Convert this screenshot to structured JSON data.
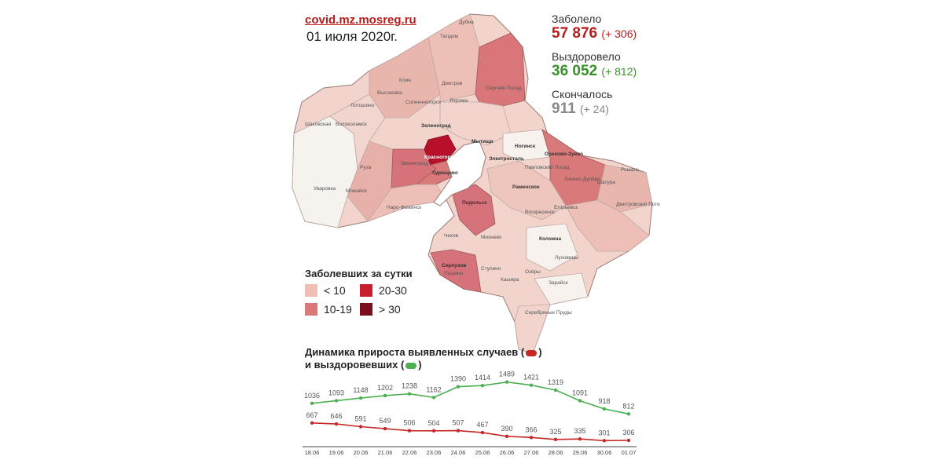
{
  "header": {
    "site": "covid.mz.mosreg.ru",
    "date": "01 июля 2020г."
  },
  "stats": {
    "infected": {
      "label": "Заболело",
      "value": "57 876",
      "delta": "(+ 306)",
      "color": "#b71c1c"
    },
    "recovered": {
      "label": "Выздоровело",
      "value": "36 052",
      "delta": "(+ 812)",
      "color": "#3a8f2a"
    },
    "died": {
      "label": "Скончалось",
      "value": "911",
      "delta": "(+ 24)",
      "color": "#888888"
    }
  },
  "map": {
    "regions": [
      {
        "name": "Дубна"
      },
      {
        "name": "Талдом"
      },
      {
        "name": "Дмитров"
      },
      {
        "name": "Сергиев Посад"
      },
      {
        "name": "Клин"
      },
      {
        "name": "Солнечногорск"
      },
      {
        "name": "Яхрома"
      },
      {
        "name": "Высоковск"
      },
      {
        "name": "Лотошино"
      },
      {
        "name": "Шаховская"
      },
      {
        "name": "Волоколамск"
      },
      {
        "name": "Зеленоград"
      },
      {
        "name": "Мытищи"
      },
      {
        "name": "Ногинск"
      },
      {
        "name": "Орехово-Зуево"
      },
      {
        "name": "Красногорск"
      },
      {
        "name": "Одинцово"
      },
      {
        "name": "Звенигород"
      },
      {
        "name": "Электросталь"
      },
      {
        "name": "Павловский Посад"
      },
      {
        "name": "Руза"
      },
      {
        "name": "Можайск"
      },
      {
        "name": "Уваровка"
      },
      {
        "name": "Наро-Фоминск"
      },
      {
        "name": "Раменское"
      },
      {
        "name": "Ликино-Дулёво"
      },
      {
        "name": "Рошаль"
      },
      {
        "name": "Шатура"
      },
      {
        "name": "Егорьевск"
      },
      {
        "name": "Воскресенск"
      },
      {
        "name": "Дмитровский Погост"
      },
      {
        "name": "Подольск"
      },
      {
        "name": "Чехов"
      },
      {
        "name": "Михнево"
      },
      {
        "name": "Коломна"
      },
      {
        "name": "Серпухов"
      },
      {
        "name": "Пущино"
      },
      {
        "name": "Ступино"
      },
      {
        "name": "Озёры"
      },
      {
        "name": "Кашира"
      },
      {
        "name": "Зарайск"
      },
      {
        "name": "Луховицы"
      },
      {
        "name": "Серебряные Пруды"
      }
    ]
  },
  "legend": {
    "title": "Заболевших за сутки",
    "items": [
      {
        "label": "< 10",
        "color": "#efbfb6"
      },
      {
        "label": "20-30",
        "color": "#c81d2e"
      },
      {
        "label": "10-19",
        "color": "#d9797a"
      },
      {
        "label": "> 30",
        "color": "#7a0d1e"
      }
    ]
  },
  "dynamics": {
    "title_line1a": "Динамика прироста выявленных случаев (",
    "title_line1b": ")",
    "title_line2a": "и выздоровевших (",
    "title_line2b": ")"
  },
  "chart_data": {
    "type": "line",
    "title": "Динамика прироста выявленных случаев и выздоровевших",
    "categories": [
      "18.06",
      "19.06",
      "20.06",
      "21.06",
      "22.06",
      "23.06",
      "24.06",
      "25.06",
      "26.06",
      "27.06",
      "28.06",
      "29.06",
      "30.06",
      "01.07"
    ],
    "series": [
      {
        "values": [
          1036,
          1093,
          1148,
          1202,
          1238,
          1162,
          1390,
          1414,
          1489,
          1421,
          1319,
          1091,
          918,
          812
        ],
        "color": "#4caf50"
      },
      {
        "values": [
          667,
          646,
          591,
          549,
          506,
          504,
          507,
          467,
          390,
          366,
          325,
          335,
          301,
          306
        ],
        "color": "#c62828"
      }
    ],
    "grid": false
  }
}
